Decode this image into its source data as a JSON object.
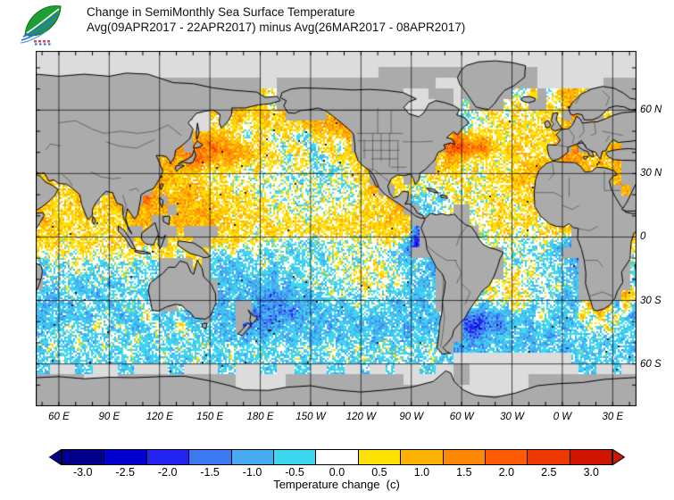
{
  "header": {
    "title": "Change in SemiMonthly Sea Surface Temperature",
    "subtitle": "Avg(09APR2017 - 22APR2017) minus Avg(26MAR2017 - 08APR2017)"
  },
  "logo": {
    "name": "leaf-waves-logo"
  },
  "map": {
    "land_color": "#ababab",
    "nodata_color": "#dcdcdc",
    "coast_color": "#000000",
    "border_color": "#3c3c3c",
    "grid_color": "#000000",
    "lon_labels": [
      {
        "text": "60 E",
        "lon": 60
      },
      {
        "text": "90 E",
        "lon": 90
      },
      {
        "text": "120 E",
        "lon": 120
      },
      {
        "text": "150 E",
        "lon": 150
      },
      {
        "text": "180 E",
        "lon": 180
      },
      {
        "text": "150 W",
        "lon": 210
      },
      {
        "text": "120 W",
        "lon": 240
      },
      {
        "text": "90 W",
        "lon": 270
      },
      {
        "text": "60 W",
        "lon": 300
      },
      {
        "text": "30 W",
        "lon": 330
      },
      {
        "text": "0 W",
        "lon": 360
      },
      {
        "text": "30 E",
        "lon": 390
      }
    ],
    "lat_labels": [
      {
        "text": "60 N",
        "lat": 60
      },
      {
        "text": "30 N",
        "lat": 30
      },
      {
        "text": "0",
        "lat": 0
      },
      {
        "text": "30 S",
        "lat": -30
      },
      {
        "text": "60 S",
        "lat": -60
      }
    ]
  },
  "colorbar": {
    "tick_labels": [
      "-3.0",
      "-2.5",
      "-2.0",
      "-1.5",
      "-1.0",
      "-0.5",
      "0.0",
      "0.5",
      "1.0",
      "1.5",
      "2.0",
      "2.5",
      "3.0"
    ],
    "segment_colors": [
      "#00008b",
      "#0000cd",
      "#2424f0",
      "#3c78f0",
      "#48aaf0",
      "#3cd8f0",
      "#ffffff",
      "#ffe105",
      "#ffb005",
      "#ff8805",
      "#ff5a05",
      "#ee3800",
      "#ce1500"
    ],
    "below_min_color": "#00008b",
    "above_max_color": "#ce1500",
    "caption": "Temperature change  (c)"
  },
  "chart_data": {
    "type": "heatmap",
    "subtype": "global-geographic-map",
    "projection": "equirectangular, Pacific-centered",
    "title": "Change in SemiMonthly Sea Surface Temperature",
    "subtitle": "Avg(09APR2017 - 22APR2017) minus Avg(26MAR2017 - 08APR2017)",
    "variable": "sea surface temperature change",
    "units": "C",
    "period_a": "09APR2017 - 22APR2017",
    "period_b": "26MAR2017 - 08APR2017",
    "lon_domain_deg_east": [
      46,
      404
    ],
    "lat_domain": [
      -80,
      88
    ],
    "grid_lines_every_deg": 30,
    "ticks_every_deg": 10,
    "scale_values": [
      -3.0,
      -2.5,
      -2.0,
      -1.5,
      -1.0,
      -0.5,
      0.0,
      0.5,
      1.0,
      1.5,
      2.0,
      2.5,
      3.0
    ],
    "scale_colors": [
      "#00008b",
      "#0000cd",
      "#2424f0",
      "#3c78f0",
      "#48aaf0",
      "#3cd8f0",
      "#ffffff",
      "#ffe105",
      "#ffb005",
      "#ff8805",
      "#ff5a05",
      "#ee3800",
      "#ce1500"
    ],
    "grid": {
      "resolution_deg": 5,
      "layout": "34 rows from 90N to 80S; 72 columns from 45E eastward around the globe to 405E; run-length encoded as <count><code>",
      "encoding": {
        "w": "~0",
        "p": "+0.5",
        "q": "+1.0",
        "r": "+1.5",
        "s": "+2.0",
        "t": "+2.5",
        "u": "+3.0",
        "a": "-0.5",
        "b": "-1.0",
        "c": "-1.5",
        "d": "-2.0",
        "e": "-2.5",
        "f": "-3.0",
        "L": "land",
        "G": "no data / sea ice"
      },
      "rows_rle": [
        "72G",
        "72G",
        "41G19L12G",
        "27L2G19L3G9L8G4L",
        "27L1p1w15L3G3L1G6L2w1p1L1w1p2q1p6L",
        "19L3G2L1q1p1q1p1w15L4G2L1G1w4L1w1p1w2L1p1w2q2L1q4L",
        "19L2G1p1w1p1q2p1q1p1q5L2q1p6L3G2L1G1w1a2w2p1w2p1w3p1L1q1L1q1L1p3L",
        "18L3G1p1w2p1w6p4q1r1q11L1w1G1a3w8p1q8L",
        "1L2w14L1p1L4q2p1a2p1a2p2a4p1q11L1q1r1q1p1q2p1w5p1q9L",
        "16L1q1r1L2r1s1r3q3p1a2p2a2p1a1p11L1s1t1s1r1s1q2p1q4p1q1L1r1L1q1p2q2L",
        "15L1q1r1q1r1s1r2q1r2q4p1a2p2a4p9L1p1r2q3p1w6p1q1r2q1p1q1p1q2L",
        "14L6q5p1w1p1w1p2w1p1w1a1w1a2w2p8L1p1q1p1w1p1w2p1w2p2q1p2L2q1p1q1p1q2L",
        "1p1q2p1q4L1p2q1L2r2q4p1w1p8w1a2w1a3w2p2L2p1L1p1w2p1w1p1w1p1w3p2q2p8L1q1L",
        "2q3p1q3L1q1p1r1q1L2q1p3q4p1w1p13w1p1q2L2p2w1a1w1p1w1p1w2p1w3p1q1p9L1q1L",
        "1r1q3p1q2L1p3q1L1s1q1L3q1p1q5p1w1p11w3p1q2L2a1w1a1w1p1w1p1w2p1w3p11L1p",
        "1q5p1L3p1q1p4q1L4q1p1q5p1w1p6w1p1w5p1q2L2a2w2L1w1p1w2p1w3p11L",
        "2q9p3q2L6q7p1w2p1w9p1q2p7L2w2p1w3p1w4p7L",
        "11p2L1p3L1p4L4p1w17p1q1c7L2w2p1w1p1w4p7L1p",
        "3p1w4p1w2p1L3p1L3p2L4p1w1p3w1a1w2a7w2p1w1b1d7L5w1a3w1a1b7L1p",
        "1p1w2p1w2p1w2p1w2p1a3p1a3p2a1p2a1w2a1w2a1w2a7w2a1b11L3w1a1w1a1b8L1w",
        "2a1w1a2w1a1w1a1w1a1w1a1w1a4L1p1L2a1b3a1w2a1w2a1w1a5w1p2w4a1b8L1w1a2w2a1w1a1b6L1w",
        "1L1a1w2a1w2a1w1a1w2a1w1a6L1a1b1a1b3a1b3a1w1a1w1a2w1p2w1p2w3a1b8L1w1p1w1p1a1w2a1b6L1a",
        "1L2a1w1a1b1a1w1a1b1a1w2a1w7L1a1b1a2b1a1b1a1b2a1w1a1w1a2w1p2w1a1w2a1b1a5L1w1p1w2p1w1a1w1a1w2a6L1a",
        "2a1b1a1w2a1b1a1w2a1w2a7L1b1a1b1a2b1c2b1a1b2a1w1a1w1a1w1a1w3a1b2a5L1w1p1w1p1w1p1w1a1w1a1b1a5L1q1p",
        "1a1b2a1b1a1w2a1b1a1w1a1w1a2L1w1a2L1a1b1a2L1b1c1b1c2b1a1b2a1b1a1w1a1w2a1b2a1b1a4L1w1b1a1w1a1p1w1a1w3a1b1w1q1r1q1b1q1a",
        "1b2a1b2a1b1a1w1a1b2a1p4a1b1a1L1b1a1b2L1c1b1c1b1c2b1a1b2a1b2a1b2a1b3a1b1a2L3c1b1c2a1b1a1p1a1b2a1p1a1q1a1p1a1b",
        "1a1b2a1w2a1p2a1w1a1b1a1w2a1p4a1b1a1L1c1b1c2b1a1b1a1b1a1b2a1b2a1b2a1b1a1b2a2L1c1d1c1b1c1b2a1b3a1b2a1p1a1p3a",
        "2a1w2a1w3a1w2a1w2a1w2a1w4a1b1a1b1a1b2a1b2a1b2a1b3a1b3a1b4a2L1b1c1b1a1b2a1b2a1b10a",
        "2a1w2a1w2a1w2a1w2a1w2a1w2a1w2a1w2a1w2a1w2a1w2a1w2a1w2a1w2a1w2a1w1a1L2b1a1b2a1b2a1b3a1b8a",
        "3a1w3a1w3a1w3a1w3a1w3a1w3a1w3a1w3a1w3a1w3a1w3a1w2a14G8a",
        "2a3G2a3G2a4G2a4G2a3G2a2G2a2G2a2G1a2G1a3G2a2G2L13G2a2G1a2G",
        "6L4G14L6G14L6G2L7G13L",
        "24L6G20L9G13L",
        "72L"
      ]
    },
    "notable_features": [
      "Orange/red warming streaks along the Kuroshio extension east of Japan (~30-40N)",
      "Strong warm (red) patch in the Gulf Stream region of the NW Atlantic (~35-45N)",
      "Widespread yellow/orange warming across the North Atlantic, Mediterranean and Norwegian Sea",
      "Yellow warming band along the equatorial Pacific; dark blue cooling right at the Peru/Ecuador coast",
      "Broad cyan/blue cooling across the South Pacific, Tasman Sea and east of New Zealand (20-60S)",
      "Dark blue cooling over the Argentine shelf of the South Atlantic",
      "Cyan cooling of the southern Indian Ocean and Benguela coast",
      "Gray no-data/ice areas in the Arctic, Sea of Okhotsk, Hudson Bay and around Antarctica"
    ]
  }
}
